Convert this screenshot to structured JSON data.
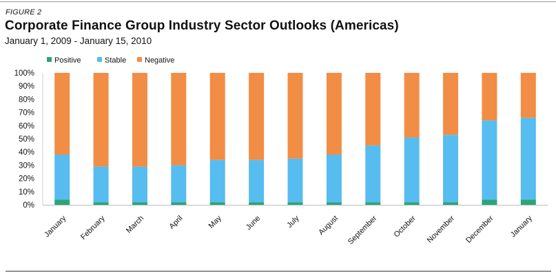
{
  "figure_label": "FIGURE 2",
  "chart_data": {
    "type": "bar",
    "stacked": true,
    "title": "Corporate Finance Group Industry Sector Outlooks (Americas)",
    "subtitle": "January 1, 2009 - January 15, 2010",
    "xlabel": "",
    "ylabel": "",
    "ylim": [
      0,
      100
    ],
    "y_ticks": [
      "0%",
      "10%",
      "20%",
      "30%",
      "40%",
      "50%",
      "60%",
      "70%",
      "80%",
      "90%",
      "100%"
    ],
    "categories": [
      "January",
      "February",
      "March",
      "April",
      "May",
      "June",
      "July",
      "August",
      "September",
      "October",
      "November",
      "December",
      "January"
    ],
    "legend_position": "top-left",
    "series": [
      {
        "name": "Positive",
        "color": "#2aa57a",
        "values": [
          4,
          2,
          2,
          2,
          2,
          2,
          2,
          2,
          2,
          2,
          2,
          4,
          4
        ]
      },
      {
        "name": "Stable",
        "color": "#57bcef",
        "values": [
          34,
          27,
          27,
          28,
          32,
          32,
          33,
          36,
          43,
          49,
          51,
          60,
          62
        ]
      },
      {
        "name": "Negative",
        "color": "#f28d45",
        "values": [
          62,
          71,
          71,
          70,
          66,
          66,
          65,
          62,
          55,
          49,
          47,
          36,
          34
        ]
      }
    ]
  }
}
